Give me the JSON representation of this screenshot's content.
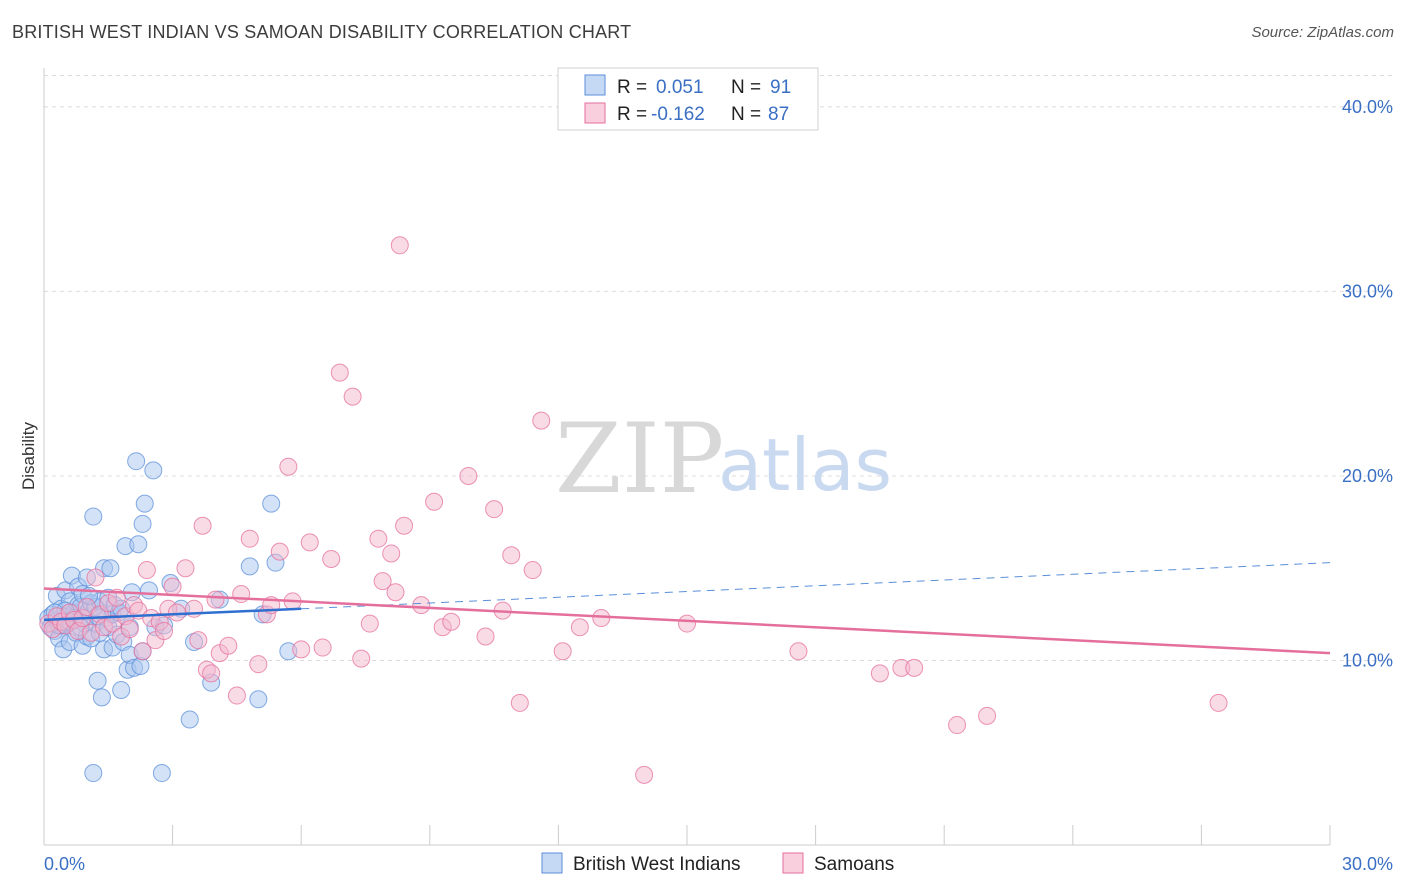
{
  "title": "BRITISH WEST INDIAN VS SAMOAN DISABILITY CORRELATION CHART",
  "source": "Source: ZipAtlas.com",
  "colors": {
    "blue": "#5b8fd9",
    "blue_fill": "#a9c6f0",
    "pink": "#e56f9c",
    "pink_fill": "#f4b8cd",
    "axis_text": "#3a6fc4"
  },
  "watermark": {
    "zip": "ZIP",
    "atlas": "atlas"
  },
  "legend": {
    "rows": [
      {
        "r_label": "R =",
        "r_value": "0.051",
        "n_label": "N =",
        "n_value": "91"
      },
      {
        "r_label": "R =",
        "r_value": "-0.162",
        "n_label": "N =",
        "n_value": "87"
      }
    ]
  },
  "chart_data": {
    "type": "scatter",
    "ylabel": "Disability",
    "xlim": [
      0,
      30
    ],
    "ylim": [
      0,
      42
    ],
    "y_ticks": [
      10,
      20,
      30,
      40
    ],
    "y_tick_labels": [
      "10.0%",
      "20.0%",
      "30.0%",
      "40.0%"
    ],
    "x_tick_labels": [
      "0.0%",
      "30.0%"
    ],
    "grid": true,
    "legend_position": "top-center",
    "series": [
      {
        "name": "British West Indians",
        "color": "#5b8fd9",
        "trend": {
          "x": [
            0,
            6
          ],
          "y": [
            12.2,
            12.8
          ],
          "dashed_to_x": 30,
          "dashed_end_y": 15.3
        },
        "points": [
          [
            0.1,
            12.3
          ],
          [
            0.15,
            11.8
          ],
          [
            0.2,
            12.0
          ],
          [
            0.2,
            12.5
          ],
          [
            0.25,
            11.6
          ],
          [
            0.3,
            12.2
          ],
          [
            0.3,
            13.5
          ],
          [
            0.35,
            11.2
          ],
          [
            0.4,
            12.8
          ],
          [
            0.4,
            11.9
          ],
          [
            0.45,
            10.6
          ],
          [
            0.5,
            12.1
          ],
          [
            0.5,
            13.8
          ],
          [
            0.55,
            12.4
          ],
          [
            0.6,
            11.0
          ],
          [
            0.6,
            13.2
          ],
          [
            0.65,
            14.6
          ],
          [
            0.7,
            12.6
          ],
          [
            0.75,
            11.5
          ],
          [
            0.8,
            13.0
          ],
          [
            0.8,
            14.0
          ],
          [
            0.85,
            12.9
          ],
          [
            0.9,
            10.8
          ],
          [
            0.9,
            13.6
          ],
          [
            0.95,
            12.3
          ],
          [
            1.0,
            14.5
          ],
          [
            1.0,
            11.3
          ],
          [
            1.05,
            12.7
          ],
          [
            1.1,
            13.1
          ],
          [
            1.1,
            11.2
          ],
          [
            1.15,
            17.8
          ],
          [
            1.2,
            12.0
          ],
          [
            1.2,
            12.9
          ],
          [
            1.25,
            8.9
          ],
          [
            1.3,
            13.2
          ],
          [
            1.3,
            11.5
          ],
          [
            1.35,
            8.0
          ],
          [
            1.4,
            10.6
          ],
          [
            1.4,
            15.0
          ],
          [
            1.45,
            12.3
          ],
          [
            1.5,
            11.8
          ],
          [
            1.5,
            13.4
          ],
          [
            1.55,
            15.0
          ],
          [
            1.6,
            10.7
          ],
          [
            1.6,
            12.5
          ],
          [
            1.65,
            13.0
          ],
          [
            1.7,
            11.4
          ],
          [
            1.75,
            12.6
          ],
          [
            1.8,
            8.4
          ],
          [
            1.8,
            12.8
          ],
          [
            1.85,
            11.0
          ],
          [
            1.9,
            16.2
          ],
          [
            1.95,
            9.5
          ],
          [
            2.0,
            10.3
          ],
          [
            2.0,
            11.8
          ],
          [
            2.05,
            13.7
          ],
          [
            2.1,
            9.6
          ],
          [
            2.15,
            20.8
          ],
          [
            2.2,
            16.3
          ],
          [
            2.25,
            9.7
          ],
          [
            2.3,
            10.5
          ],
          [
            2.3,
            17.4
          ],
          [
            2.35,
            18.5
          ],
          [
            2.45,
            13.8
          ],
          [
            2.55,
            20.3
          ],
          [
            2.6,
            11.8
          ],
          [
            2.75,
            3.9
          ],
          [
            2.8,
            11.9
          ],
          [
            2.95,
            14.2
          ],
          [
            3.2,
            12.8
          ],
          [
            3.4,
            6.8
          ],
          [
            3.5,
            11.0
          ],
          [
            3.9,
            8.8
          ],
          [
            4.1,
            13.3
          ],
          [
            4.8,
            15.1
          ],
          [
            5.0,
            7.9
          ],
          [
            5.1,
            12.5
          ],
          [
            5.3,
            18.5
          ],
          [
            5.4,
            15.3
          ],
          [
            5.7,
            10.5
          ],
          [
            1.15,
            3.9
          ],
          [
            0.55,
            12.0
          ],
          [
            0.7,
            12.3
          ],
          [
            0.95,
            12.0
          ],
          [
            1.25,
            12.4
          ],
          [
            0.35,
            11.9
          ],
          [
            0.5,
            12.7
          ],
          [
            1.05,
            13.5
          ],
          [
            0.25,
            12.6
          ],
          [
            0.6,
            12.1
          ],
          [
            0.85,
            11.8
          ]
        ]
      },
      {
        "name": "Samoans",
        "color": "#e56f9c",
        "trend": {
          "x": [
            0,
            30
          ],
          "y": [
            13.9,
            10.4
          ]
        },
        "points": [
          [
            0.1,
            12.0
          ],
          [
            0.2,
            11.7
          ],
          [
            0.3,
            12.4
          ],
          [
            0.4,
            12.1
          ],
          [
            0.5,
            11.9
          ],
          [
            0.6,
            12.6
          ],
          [
            0.7,
            12.2
          ],
          [
            0.8,
            11.6
          ],
          [
            0.9,
            12.3
          ],
          [
            1.0,
            12.9
          ],
          [
            1.1,
            11.5
          ],
          [
            1.2,
            14.5
          ],
          [
            1.3,
            12.5
          ],
          [
            1.4,
            11.8
          ],
          [
            1.5,
            13.1
          ],
          [
            1.6,
            12.0
          ],
          [
            1.7,
            13.4
          ],
          [
            1.8,
            11.3
          ],
          [
            1.9,
            12.4
          ],
          [
            2.0,
            11.7
          ],
          [
            2.1,
            13.0
          ],
          [
            2.2,
            12.7
          ],
          [
            2.3,
            10.5
          ],
          [
            2.4,
            14.9
          ],
          [
            2.5,
            12.3
          ],
          [
            2.6,
            11.1
          ],
          [
            2.7,
            12.1
          ],
          [
            2.8,
            11.6
          ],
          [
            2.9,
            12.8
          ],
          [
            3.0,
            14.0
          ],
          [
            3.1,
            12.6
          ],
          [
            3.3,
            15.0
          ],
          [
            3.5,
            12.8
          ],
          [
            3.7,
            17.3
          ],
          [
            3.8,
            9.5
          ],
          [
            3.9,
            9.3
          ],
          [
            4.0,
            13.3
          ],
          [
            4.1,
            10.4
          ],
          [
            4.3,
            10.8
          ],
          [
            4.5,
            8.1
          ],
          [
            4.6,
            13.6
          ],
          [
            4.8,
            16.6
          ],
          [
            5.0,
            9.8
          ],
          [
            5.2,
            12.5
          ],
          [
            5.3,
            13.0
          ],
          [
            5.5,
            15.9
          ],
          [
            5.7,
            20.5
          ],
          [
            6.0,
            10.6
          ],
          [
            6.2,
            16.4
          ],
          [
            6.5,
            10.7
          ],
          [
            6.7,
            15.5
          ],
          [
            6.9,
            25.6
          ],
          [
            7.2,
            24.3
          ],
          [
            7.4,
            10.1
          ],
          [
            7.6,
            12.0
          ],
          [
            7.8,
            16.6
          ],
          [
            7.9,
            14.3
          ],
          [
            8.1,
            15.8
          ],
          [
            8.2,
            13.7
          ],
          [
            8.4,
            17.3
          ],
          [
            8.3,
            32.5
          ],
          [
            8.8,
            13.0
          ],
          [
            9.1,
            18.6
          ],
          [
            9.3,
            11.8
          ],
          [
            9.5,
            12.1
          ],
          [
            9.9,
            20.0
          ],
          [
            10.3,
            11.3
          ],
          [
            10.5,
            18.2
          ],
          [
            10.7,
            12.7
          ],
          [
            10.9,
            15.7
          ],
          [
            11.1,
            7.7
          ],
          [
            11.4,
            14.9
          ],
          [
            11.6,
            23.0
          ],
          [
            12.1,
            10.5
          ],
          [
            12.5,
            11.8
          ],
          [
            13.0,
            12.3
          ],
          [
            14.0,
            3.8
          ],
          [
            15.0,
            12.0
          ],
          [
            17.6,
            10.5
          ],
          [
            19.5,
            9.3
          ],
          [
            20.0,
            9.6
          ],
          [
            20.3,
            9.6
          ],
          [
            21.3,
            6.5
          ],
          [
            22.0,
            7.0
          ],
          [
            27.4,
            7.7
          ],
          [
            3.6,
            11.1
          ],
          [
            5.8,
            13.2
          ]
        ]
      }
    ]
  }
}
